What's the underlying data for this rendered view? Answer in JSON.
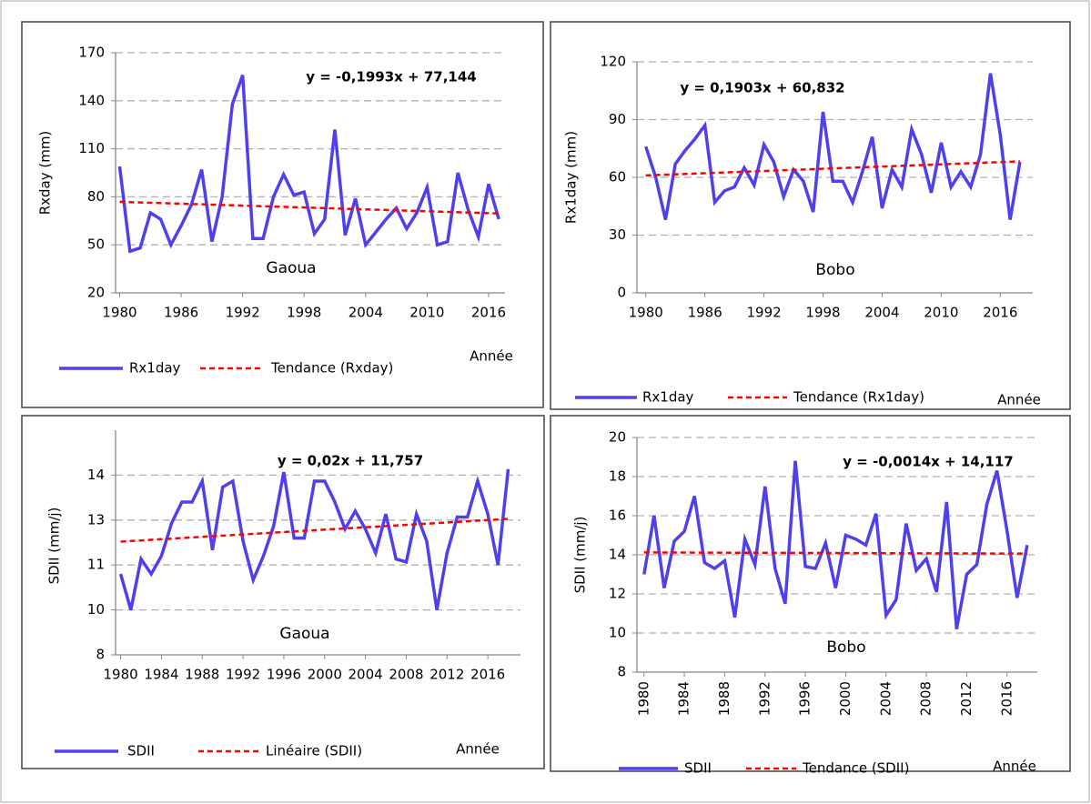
{
  "chart_data": [
    {
      "type": "line",
      "y_label": "Rxday (mm)",
      "x_label": "Année",
      "annotations": [
        "y = -0,1993x + 77,144",
        "Gaoua"
      ],
      "x": [
        1980,
        1981,
        1982,
        1983,
        1984,
        1985,
        1986,
        1987,
        1988,
        1989,
        1990,
        1991,
        1992,
        1993,
        1994,
        1995,
        1996,
        1997,
        1998,
        1999,
        2000,
        2001,
        2002,
        2003,
        2004,
        2005,
        2006,
        2007,
        2008,
        2009,
        2010,
        2011,
        2012,
        2013,
        2014,
        2015,
        2016,
        2017
      ],
      "series": [
        {
          "name": "Rx1day",
          "color": "#4f3fee",
          "values": [
            99,
            46,
            48,
            70,
            66,
            50,
            62,
            75,
            97,
            52,
            80,
            138,
            156,
            54,
            54,
            80,
            94,
            81,
            83,
            57,
            66,
            122,
            56,
            79,
            50,
            58,
            66,
            73,
            60,
            70,
            86,
            50,
            52,
            95,
            72,
            55,
            88,
            66
          ]
        },
        {
          "name": "Tendance (Rxday)",
          "color": "#ff0000",
          "dashed": true,
          "x": [
            1980,
            2017
          ],
          "values": [
            76.9,
            69.6
          ]
        }
      ],
      "xlim": [
        1979.6,
        2017.6
      ],
      "xticks": [
        1980,
        1986,
        1992,
        1998,
        2004,
        2010,
        2016
      ],
      "ylim": [
        20,
        170
      ],
      "yticks": [
        20,
        50,
        80,
        110,
        140,
        170
      ],
      "grid": true
    },
    {
      "type": "line",
      "y_label": "Rx1day (mm)",
      "x_label": "Année",
      "annotations": [
        "y = 0,1903x + 60,832",
        "Bobo"
      ],
      "x": [
        1980,
        1981,
        1982,
        1983,
        1984,
        1985,
        1986,
        1987,
        1988,
        1989,
        1990,
        1991,
        1992,
        1993,
        1994,
        1995,
        1996,
        1997,
        1998,
        1999,
        2000,
        2001,
        2002,
        2003,
        2004,
        2005,
        2006,
        2007,
        2008,
        2009,
        2010,
        2011,
        2012,
        2013,
        2014,
        2015,
        2016,
        2017,
        2018
      ],
      "series": [
        {
          "name": "Rx1day",
          "color": "#4f3fee",
          "values": [
            76,
            60,
            38,
            67,
            74,
            80,
            87,
            47,
            53,
            55,
            65,
            56,
            77,
            68,
            50,
            64,
            58,
            42,
            94,
            58,
            58,
            47,
            63,
            81,
            44,
            64,
            55,
            85,
            72,
            52,
            78,
            55,
            63,
            55,
            72,
            114,
            82,
            38,
            68
          ]
        },
        {
          "name": "Tendance (Rx1day)",
          "color": "#ff0000",
          "dashed": true,
          "x": [
            1980,
            2018
          ],
          "values": [
            61.0,
            68.3
          ]
        }
      ],
      "xlim": [
        1979.1,
        2019.3
      ],
      "xticks": [
        1980,
        1986,
        1992,
        1998,
        2004,
        2010,
        2016
      ],
      "ylim": [
        0,
        120
      ],
      "yticks": [
        0,
        30,
        60,
        90,
        120
      ],
      "grid": true
    },
    {
      "type": "line",
      "y_label": "SDII (mm/j)",
      "x_label": "Année",
      "annotations": [
        "y = 0,02x + 11,757",
        "Gaoua"
      ],
      "x": [
        1980,
        1981,
        1982,
        1983,
        1984,
        1985,
        1986,
        1987,
        1988,
        1989,
        1990,
        1991,
        1992,
        1993,
        1994,
        1995,
        1996,
        1997,
        1998,
        1999,
        2000,
        2001,
        2002,
        2003,
        2004,
        2005,
        2006,
        2007,
        2008,
        2009,
        2010,
        2011,
        2012,
        2013,
        2014,
        2015,
        2016,
        2017,
        2018
      ],
      "series": [
        {
          "name": "SDII",
          "color": "#4f3fee",
          "values": [
            10.7,
            9.5,
            11.2,
            10.7,
            11.3,
            12.4,
            13.1,
            13.1,
            13.8,
            11.5,
            13.6,
            13.8,
            11.8,
            10.5,
            11.3,
            12.3,
            14.1,
            11.9,
            11.9,
            13.8,
            13.8,
            13.1,
            12.2,
            12.8,
            12.2,
            11.4,
            12.7,
            11.2,
            11.1,
            12.7,
            11.8,
            9.5,
            11.4,
            12.6,
            12.6,
            13.8,
            12.7,
            11.0,
            14.2
          ]
        },
        {
          "name": "Linéaire (SDII)",
          "color": "#ff0000",
          "dashed": true,
          "x": [
            1980,
            2018
          ],
          "values": [
            11.78,
            12.54
          ]
        }
      ],
      "xlim": [
        1979.5,
        2019.2
      ],
      "xticks": [
        1980,
        1984,
        1988,
        1992,
        1996,
        2000,
        2004,
        2008,
        2012,
        2016
      ],
      "ylim": [
        8,
        15.5
      ],
      "yticks": [
        8,
        {
          "value": 9.5,
          "label": "10"
        },
        11,
        {
          "value": 12.5,
          "label": "13"
        },
        14
      ],
      "grid": true
    },
    {
      "type": "line",
      "y_label": "SDII (mm/j)",
      "x_label": "Année",
      "annotations": [
        "y = -0,0014x + 14,117",
        "Bobo"
      ],
      "rotate_xticks": true,
      "x": [
        1980,
        1981,
        1982,
        1983,
        1984,
        1985,
        1986,
        1987,
        1988,
        1989,
        1990,
        1991,
        1992,
        1993,
        1994,
        1995,
        1996,
        1997,
        1998,
        1999,
        2000,
        2001,
        2002,
        2003,
        2004,
        2005,
        2006,
        2007,
        2008,
        2009,
        2010,
        2011,
        2012,
        2013,
        2014,
        2015,
        2016,
        2017,
        2018
      ],
      "series": [
        {
          "name": "SDII",
          "color": "#4f3fee",
          "values": [
            13,
            16,
            12.3,
            14.7,
            15.2,
            17,
            13.6,
            13.3,
            13.7,
            10.8,
            14.8,
            13.5,
            17.5,
            13.3,
            11.5,
            18.8,
            13.4,
            13.3,
            14.6,
            12.3,
            15,
            14.8,
            14.5,
            16.1,
            10.9,
            11.7,
            15.6,
            13.2,
            13.8,
            12.1,
            16.7,
            10.2,
            13,
            13.5,
            16.6,
            18.3,
            15.2,
            11.8,
            14.5
          ]
        },
        {
          "name": "Tendance (SDII)",
          "color": "#ff0000",
          "dashed": true,
          "x": [
            1980,
            2018
          ],
          "values": [
            14.12,
            14.06
          ]
        }
      ],
      "xlim": [
        1979.3,
        2019
      ],
      "xticks": [
        1980,
        1984,
        1988,
        1992,
        1996,
        2000,
        2004,
        2008,
        2012,
        2016
      ],
      "ylim": [
        8,
        20
      ],
      "yticks": [
        8,
        10,
        12,
        14,
        16,
        18,
        20
      ],
      "grid": true
    }
  ]
}
